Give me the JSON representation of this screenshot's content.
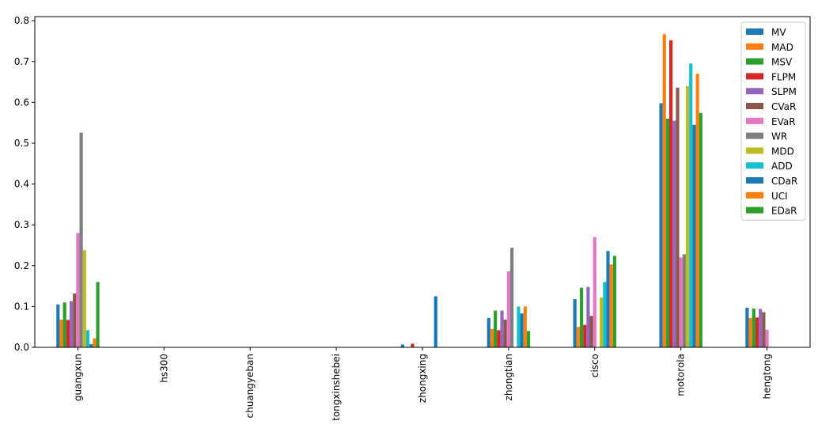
{
  "chart_data": {
    "type": "bar",
    "title": "",
    "xlabel": "",
    "ylabel": "",
    "ylim": [
      0,
      0.81
    ],
    "yticks": [
      0.0,
      0.1,
      0.2,
      0.3,
      0.4,
      0.5,
      0.6,
      0.7,
      0.8
    ],
    "ytick_labels": [
      "0.0",
      "0.1",
      "0.2",
      "0.3",
      "0.4",
      "0.5",
      "0.6",
      "0.7",
      "0.8"
    ],
    "grid": false,
    "legend_position": "top-right",
    "categories": [
      "guangxun",
      "hs300",
      "chuangyeban",
      "tongxinshebei",
      "zhongxing",
      "zhongtian",
      "cisco",
      "motorola",
      "hengtong"
    ],
    "series": [
      {
        "name": "MV",
        "color": "#1f77b4",
        "values": [
          0.105,
          0.0,
          0.0,
          0.0,
          0.007,
          0.072,
          0.118,
          0.598,
          0.097
        ]
      },
      {
        "name": "MAD",
        "color": "#ff7f0e",
        "values": [
          0.068,
          0.0,
          0.0,
          0.0,
          0.0,
          0.045,
          0.05,
          0.767,
          0.072
        ]
      },
      {
        "name": "MSV",
        "color": "#2ca02c",
        "values": [
          0.11,
          0.0,
          0.0,
          0.0,
          0.0,
          0.09,
          0.146,
          0.56,
          0.095
        ]
      },
      {
        "name": "FLPM",
        "color": "#d62728",
        "values": [
          0.067,
          0.0,
          0.0,
          0.0,
          0.009,
          0.042,
          0.055,
          0.752,
          0.073
        ]
      },
      {
        "name": "SLPM",
        "color": "#9467bd",
        "values": [
          0.113,
          0.0,
          0.0,
          0.0,
          0.0,
          0.09,
          0.148,
          0.555,
          0.094
        ]
      },
      {
        "name": "CVaR",
        "color": "#8c564b",
        "values": [
          0.132,
          0.0,
          0.0,
          0.0,
          0.0,
          0.068,
          0.077,
          0.636,
          0.086
        ]
      },
      {
        "name": "EVaR",
        "color": "#e377c2",
        "values": [
          0.28,
          0.0,
          0.0,
          0.0,
          0.0,
          0.186,
          0.27,
          0.22,
          0.043
        ]
      },
      {
        "name": "WR",
        "color": "#7f7f7f",
        "values": [
          0.526,
          0.0,
          0.0,
          0.0,
          0.0,
          0.244,
          0.0,
          0.228,
          0.0
        ]
      },
      {
        "name": "MDD",
        "color": "#bcbd22",
        "values": [
          0.238,
          0.0,
          0.0,
          0.0,
          0.0,
          0.0,
          0.122,
          0.64,
          0.0
        ]
      },
      {
        "name": "ADD",
        "color": "#17becf",
        "values": [
          0.042,
          0.0,
          0.0,
          0.0,
          0.0,
          0.1,
          0.16,
          0.695,
          0.0
        ]
      },
      {
        "name": "CDaR",
        "color": "#1f77b4",
        "values": [
          0.008,
          0.0,
          0.0,
          0.0,
          0.125,
          0.083,
          0.236,
          0.545,
          0.0
        ]
      },
      {
        "name": "UCI",
        "color": "#ff7f0e",
        "values": [
          0.022,
          0.0,
          0.0,
          0.0,
          0.0,
          0.1,
          0.203,
          0.67,
          0.0
        ]
      },
      {
        "name": "EDaR",
        "color": "#2ca02c",
        "values": [
          0.16,
          0.0,
          0.0,
          0.0,
          0.0,
          0.04,
          0.224,
          0.574,
          0.0
        ]
      }
    ]
  }
}
